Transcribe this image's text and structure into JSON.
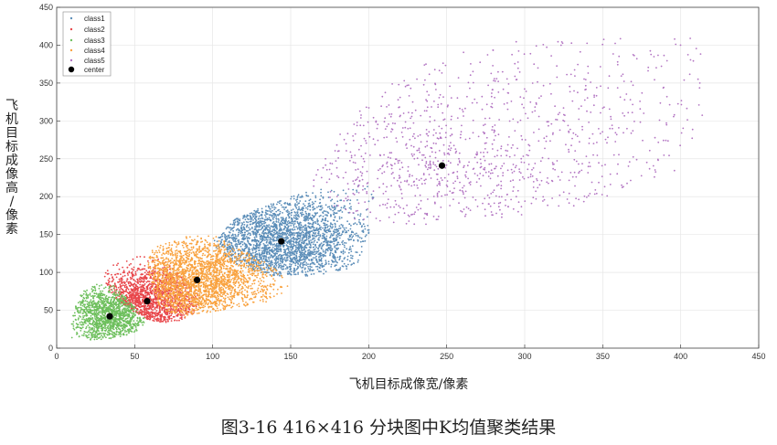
{
  "figure_caption": "图3-16   416×416 分块图中K均值聚类结果",
  "colors": {
    "class1": "#5b8db8",
    "class2": "#e8464a",
    "class3": "#6dbf5c",
    "class4": "#f9a23f",
    "class5": "#b274c2",
    "center": "#000000"
  },
  "chart_data": {
    "type": "scatter",
    "xlabel": "飞机目标成像宽/像素",
    "ylabel": "飞机目标成像高/像素",
    "xlim": [
      0,
      450
    ],
    "ylim": [
      0,
      450
    ],
    "xticks": [
      0,
      50,
      100,
      150,
      200,
      250,
      300,
      350,
      400,
      450
    ],
    "yticks": [
      0,
      50,
      100,
      150,
      200,
      250,
      300,
      350,
      400,
      450
    ],
    "grid": true,
    "legend_position": "top-left",
    "series": [
      {
        "name": "class1",
        "color_key": "class1",
        "center": [
          144,
          141
        ],
        "n_points": 2600,
        "region": [
          [
            114,
            170
          ],
          [
            130,
            185
          ],
          [
            150,
            200
          ],
          [
            172,
            212
          ],
          [
            200,
            216
          ],
          [
            205,
            190
          ],
          [
            200,
            150
          ],
          [
            193,
            110
          ],
          [
            180,
            100
          ],
          [
            160,
            95
          ],
          [
            140,
            95
          ],
          [
            120,
            105
          ],
          [
            104,
            125
          ],
          [
            100,
            140
          ]
        ]
      },
      {
        "name": "class2",
        "color_key": "class2",
        "center": [
          58,
          62
        ],
        "n_points": 1500,
        "region": [
          [
            30,
            105
          ],
          [
            50,
            120
          ],
          [
            60,
            125
          ],
          [
            68,
            118
          ],
          [
            78,
            100
          ],
          [
            88,
            80
          ],
          [
            93,
            62
          ],
          [
            86,
            40
          ],
          [
            70,
            32
          ],
          [
            55,
            40
          ],
          [
            38,
            65
          ],
          [
            30,
            85
          ]
        ]
      },
      {
        "name": "class3",
        "color_key": "class3",
        "center": [
          34,
          42
        ],
        "n_points": 1300,
        "region": [
          [
            8,
            12
          ],
          [
            10,
            40
          ],
          [
            14,
            68
          ],
          [
            20,
            82
          ],
          [
            34,
            88
          ],
          [
            42,
            72
          ],
          [
            50,
            55
          ],
          [
            58,
            36
          ],
          [
            50,
            20
          ],
          [
            30,
            10
          ]
        ]
      },
      {
        "name": "class4",
        "color_key": "class4",
        "center": [
          90,
          90
        ],
        "n_points": 2400,
        "region": [
          [
            60,
            130
          ],
          [
            80,
            148
          ],
          [
            100,
            150
          ],
          [
            118,
            130
          ],
          [
            140,
            108
          ],
          [
            150,
            88
          ],
          [
            148,
            68
          ],
          [
            128,
            58
          ],
          [
            100,
            48
          ],
          [
            80,
            40
          ],
          [
            66,
            52
          ],
          [
            62,
            80
          ],
          [
            58,
            105
          ]
        ]
      },
      {
        "name": "class5",
        "color_key": "class5",
        "center": [
          247,
          241
        ],
        "n_points": 1100,
        "region": [
          [
            160,
            210
          ],
          [
            180,
            280
          ],
          [
            200,
            330
          ],
          [
            240,
            380
          ],
          [
            290,
            412
          ],
          [
            360,
            412
          ],
          [
            414,
            412
          ],
          [
            414,
            300
          ],
          [
            400,
            230
          ],
          [
            340,
            190
          ],
          [
            280,
            170
          ],
          [
            230,
            160
          ],
          [
            190,
            170
          ]
        ]
      }
    ],
    "centers": {
      "name": "center",
      "color_key": "center",
      "points": [
        [
          34,
          42
        ],
        [
          58,
          62
        ],
        [
          90,
          90
        ],
        [
          144,
          141
        ],
        [
          247,
          241
        ]
      ]
    }
  }
}
